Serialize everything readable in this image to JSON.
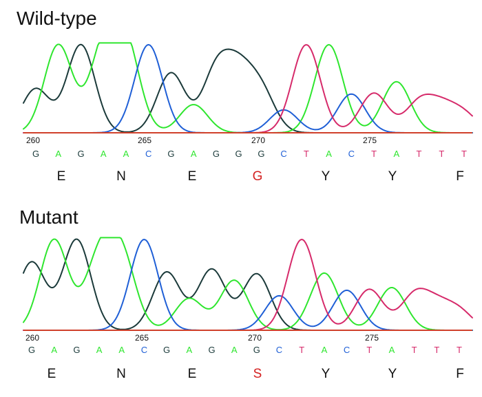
{
  "colors": {
    "G": "#1b3a3a",
    "A": "#2ee62e",
    "C": "#1f5fd6",
    "T": "#d62a6a",
    "highlight": "#d42020",
    "baseline": "#d0402a",
    "text": "#111111"
  },
  "panels": [
    {
      "title": "Wild-type",
      "positions": [
        "260",
        "265",
        "270",
        "275"
      ],
      "bases": [
        "G",
        "A",
        "G",
        "A",
        "A",
        "C",
        "G",
        "A",
        "G",
        "G",
        "G",
        "C",
        "T",
        "A",
        "C",
        "T",
        "A",
        "T",
        "T",
        "T"
      ],
      "amino_acids": [
        "E",
        "N",
        "E",
        "G",
        "Y",
        "Y",
        "F"
      ],
      "mutated_residue": "G",
      "mutated_residue_index": 3,
      "peaks": [
        {
          "base": "G",
          "height": 0.5
        },
        {
          "base": "A",
          "height": 1.0
        },
        {
          "base": "G",
          "height": 1.0
        },
        {
          "base": "A",
          "height": 0.92
        },
        {
          "base": "A",
          "height": 0.96
        },
        {
          "base": "C",
          "height": 1.0
        },
        {
          "base": "G",
          "height": 0.68
        },
        {
          "base": "A",
          "height": 0.32
        },
        {
          "base": "G",
          "height": 0.68
        },
        {
          "base": "G",
          "height": 0.6
        },
        {
          "base": "G",
          "height": 0.45
        },
        {
          "base": "C",
          "height": 0.26
        },
        {
          "base": "T",
          "height": 1.0
        },
        {
          "base": "A",
          "height": 1.0
        },
        {
          "base": "C",
          "height": 0.44
        },
        {
          "base": "T",
          "height": 0.45
        },
        {
          "base": "A",
          "height": 0.58
        },
        {
          "base": "T",
          "height": 0.33
        },
        {
          "base": "T",
          "height": 0.26
        },
        {
          "base": "T",
          "height": 0.2
        }
      ]
    },
    {
      "title": "Mutant",
      "positions": [
        "260",
        "265",
        "270",
        "275"
      ],
      "bases": [
        "G",
        "A",
        "G",
        "A",
        "A",
        "C",
        "G",
        "A",
        "G",
        "A",
        "G",
        "C",
        "T",
        "A",
        "C",
        "T",
        "A",
        "T",
        "T",
        "T"
      ],
      "amino_acids": [
        "E",
        "N",
        "E",
        "S",
        "Y",
        "Y",
        "F"
      ],
      "mutated_residue": "S",
      "mutated_residue_index": 3,
      "peaks": [
        {
          "base": "G",
          "height": 0.75
        },
        {
          "base": "A",
          "height": 1.0
        },
        {
          "base": "G",
          "height": 1.0
        },
        {
          "base": "A",
          "height": 0.77
        },
        {
          "base": "A",
          "height": 0.79
        },
        {
          "base": "C",
          "height": 1.0
        },
        {
          "base": "G",
          "height": 0.64
        },
        {
          "base": "A",
          "height": 0.35
        },
        {
          "base": "G",
          "height": 0.67
        },
        {
          "base": "A",
          "height": 0.55
        },
        {
          "base": "G",
          "height": 0.62
        },
        {
          "base": "C",
          "height": 0.38
        },
        {
          "base": "T",
          "height": 1.0
        },
        {
          "base": "A",
          "height": 0.63
        },
        {
          "base": "C",
          "height": 0.44
        },
        {
          "base": "T",
          "height": 0.45
        },
        {
          "base": "A",
          "height": 0.47
        },
        {
          "base": "T",
          "height": 0.37
        },
        {
          "base": "T",
          "height": 0.24
        },
        {
          "base": "T",
          "height": 0.2
        }
      ]
    }
  ]
}
